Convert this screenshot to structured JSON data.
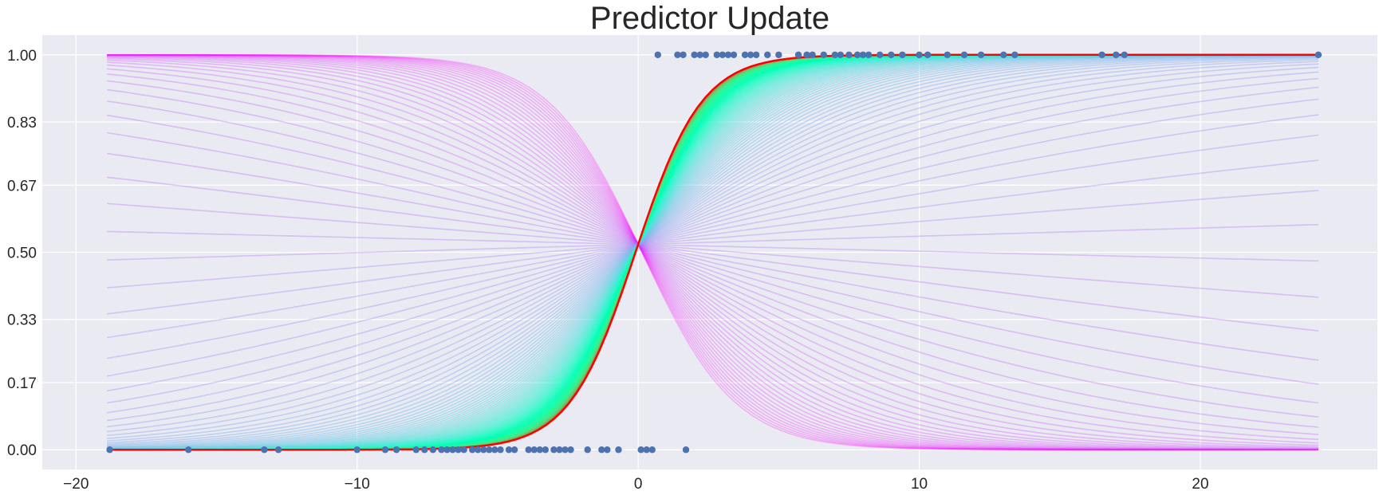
{
  "chart_data": {
    "type": "line",
    "title": "Predictor Update",
    "xlabel": "",
    "ylabel": "",
    "xlim": [
      -21.2,
      26.3
    ],
    "ylim": [
      -0.05,
      1.05
    ],
    "x_ticks": [
      -20,
      -10,
      0,
      10,
      20
    ],
    "x_tick_labels": [
      "−20",
      "−10",
      "0",
      "10",
      "20"
    ],
    "y_ticks": [
      0.0,
      0.17,
      0.33,
      0.5,
      0.67,
      0.83,
      1.0
    ],
    "y_tick_labels": [
      "0.00",
      "0.17",
      "0.33",
      "0.50",
      "0.67",
      "0.83",
      "1.00"
    ],
    "grid": true,
    "legend": "none",
    "background_color": "#eaeaf2",
    "grid_color": "#ffffff",
    "colormap": "rainbow",
    "curve_family": {
      "description": "sequence of logistic curves p(x) = 1 / (1 + exp(-(w*x + b))) colored from purple (early) to red (final)",
      "x_range": [
        -18.9,
        24.2
      ],
      "bias": 0.08,
      "initial_weight": -0.6,
      "final_weight": 0.85,
      "num_curves": 200,
      "final_color": "#ff0000",
      "initial_color": "#8000ff"
    },
    "scatter_series": {
      "name": "",
      "color": "#4c72b0",
      "points": [
        {
          "x": -18.8,
          "y": 0
        },
        {
          "x": -16.0,
          "y": 0
        },
        {
          "x": -13.3,
          "y": 0
        },
        {
          "x": -12.8,
          "y": 0
        },
        {
          "x": -10.0,
          "y": 0
        },
        {
          "x": -9.0,
          "y": 0
        },
        {
          "x": -8.6,
          "y": 0
        },
        {
          "x": -7.9,
          "y": 0
        },
        {
          "x": -7.6,
          "y": 0
        },
        {
          "x": -7.3,
          "y": 0
        },
        {
          "x": -7.0,
          "y": 0
        },
        {
          "x": -6.8,
          "y": 0
        },
        {
          "x": -6.6,
          "y": 0
        },
        {
          "x": -6.4,
          "y": 0
        },
        {
          "x": -6.2,
          "y": 0
        },
        {
          "x": -5.9,
          "y": 0
        },
        {
          "x": -5.7,
          "y": 0
        },
        {
          "x": -5.5,
          "y": 0
        },
        {
          "x": -5.3,
          "y": 0
        },
        {
          "x": -5.1,
          "y": 0
        },
        {
          "x": -4.9,
          "y": 0
        },
        {
          "x": -4.6,
          "y": 0
        },
        {
          "x": -4.4,
          "y": 0
        },
        {
          "x": -3.9,
          "y": 0
        },
        {
          "x": -3.7,
          "y": 0
        },
        {
          "x": -3.5,
          "y": 0
        },
        {
          "x": -3.3,
          "y": 0
        },
        {
          "x": -3.0,
          "y": 0
        },
        {
          "x": -2.8,
          "y": 0
        },
        {
          "x": -2.6,
          "y": 0
        },
        {
          "x": -2.4,
          "y": 0
        },
        {
          "x": -1.8,
          "y": 0
        },
        {
          "x": -1.3,
          "y": 0
        },
        {
          "x": -1.1,
          "y": 0
        },
        {
          "x": -0.7,
          "y": 0
        },
        {
          "x": 0.1,
          "y": 0
        },
        {
          "x": 0.3,
          "y": 0
        },
        {
          "x": 0.5,
          "y": 0
        },
        {
          "x": 1.7,
          "y": 0
        },
        {
          "x": 0.7,
          "y": 1
        },
        {
          "x": 1.4,
          "y": 1
        },
        {
          "x": 1.6,
          "y": 1
        },
        {
          "x": 2.0,
          "y": 1
        },
        {
          "x": 2.2,
          "y": 1
        },
        {
          "x": 2.4,
          "y": 1
        },
        {
          "x": 2.8,
          "y": 1
        },
        {
          "x": 3.0,
          "y": 1
        },
        {
          "x": 3.2,
          "y": 1
        },
        {
          "x": 3.4,
          "y": 1
        },
        {
          "x": 3.8,
          "y": 1
        },
        {
          "x": 4.0,
          "y": 1
        },
        {
          "x": 4.2,
          "y": 1
        },
        {
          "x": 4.6,
          "y": 1
        },
        {
          "x": 5.0,
          "y": 1
        },
        {
          "x": 5.7,
          "y": 1
        },
        {
          "x": 6.0,
          "y": 1
        },
        {
          "x": 6.2,
          "y": 1
        },
        {
          "x": 6.6,
          "y": 1
        },
        {
          "x": 7.0,
          "y": 1
        },
        {
          "x": 7.2,
          "y": 1
        },
        {
          "x": 7.5,
          "y": 1
        },
        {
          "x": 7.8,
          "y": 1
        },
        {
          "x": 8.0,
          "y": 1
        },
        {
          "x": 8.2,
          "y": 1
        },
        {
          "x": 8.6,
          "y": 1
        },
        {
          "x": 9.0,
          "y": 1
        },
        {
          "x": 9.4,
          "y": 1
        },
        {
          "x": 10.0,
          "y": 1
        },
        {
          "x": 10.3,
          "y": 1
        },
        {
          "x": 11.0,
          "y": 1
        },
        {
          "x": 11.6,
          "y": 1
        },
        {
          "x": 12.2,
          "y": 1
        },
        {
          "x": 13.0,
          "y": 1
        },
        {
          "x": 13.4,
          "y": 1
        },
        {
          "x": 16.5,
          "y": 1
        },
        {
          "x": 17.0,
          "y": 1
        },
        {
          "x": 17.3,
          "y": 1
        },
        {
          "x": 24.2,
          "y": 1
        }
      ]
    }
  }
}
